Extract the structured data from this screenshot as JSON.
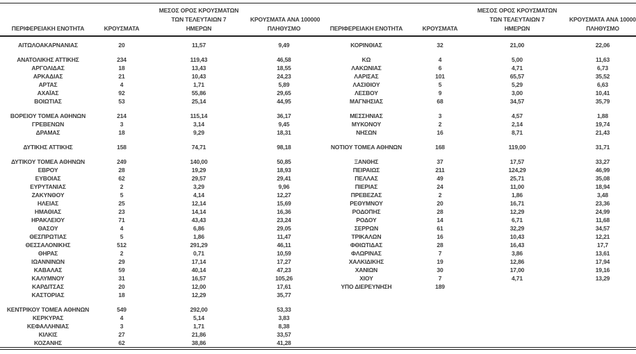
{
  "page": {
    "background": "#ffffff",
    "text_color": "#3b3b3b",
    "rule_color": "#1f1f1f"
  },
  "headers": {
    "region": "ΠΕΡΙΦΕΡΕΙΑΚΗ ΕΝΟΤΗΤΑ",
    "cases": "ΚΡΟΥΣΜΑΤΑ",
    "avg7_l1": "ΜΕΣΟΣ ΟΡΟΣ ΚΡΟΥΣΜΑΤΩΝ",
    "avg7_l2": "ΤΩΝ ΤΕΛΕΥΤΑΙΩΝ 7",
    "avg7_l3": "ΗΜΕΡΩΝ",
    "per100k_l1": "ΚΡΟΥΣΜΑΤΑ ΑΝΑ 100000",
    "per100k_l2": "ΠΛΗΘΥΣΜΟ"
  },
  "rows": [
    {
      "left": [
        "ΑΙΤΩΛΟΑΚΑΡΝΑΝΙΑΣ",
        "20",
        "11,57",
        "9,49"
      ],
      "right": [
        "ΚΟΡΙΝΘΙΑΣ",
        "32",
        "21,00",
        "22,06"
      ]
    },
    {
      "blank": true
    },
    {
      "left": [
        "ΑΝΑΤΟΛΙΚΗΣ ΑΤΤΙΚΗΣ",
        "234",
        "119,43",
        "46,58"
      ],
      "right": [
        "ΚΩ",
        "4",
        "5,00",
        "11,63"
      ]
    },
    {
      "left": [
        "ΑΡΓΟΛΙΔΑΣ",
        "18",
        "13,43",
        "18,55"
      ],
      "right": [
        "ΛΑΚΩΝΙΑΣ",
        "6",
        "4,71",
        "6,73"
      ]
    },
    {
      "left": [
        "ΑΡΚΑΔΙΑΣ",
        "21",
        "10,43",
        "24,23"
      ],
      "right": [
        "ΛΑΡΙΣΑΣ",
        "101",
        "65,57",
        "35,52"
      ]
    },
    {
      "left": [
        "ΑΡΤΑΣ",
        "4",
        "1,71",
        "5,89"
      ],
      "right": [
        "ΛΑΣΙΘΙΟΥ",
        "5",
        "5,29",
        "6,63"
      ]
    },
    {
      "left": [
        "ΑΧΑΪΑΣ",
        "92",
        "55,86",
        "29,65"
      ],
      "right": [
        "ΛΕΣΒΟΥ",
        "9",
        "3,00",
        "10,41"
      ]
    },
    {
      "left": [
        "ΒΟΙΩΤΙΑΣ",
        "53",
        "25,14",
        "44,95"
      ],
      "right": [
        "ΜΑΓΝΗΣΙΑΣ",
        "68",
        "34,57",
        "35,79"
      ]
    },
    {
      "blank": true
    },
    {
      "left": [
        "ΒΟΡΕΙΟΥ ΤΟΜΕΑ ΑΘΗΝΩΝ",
        "214",
        "115,14",
        "36,17"
      ],
      "right": [
        "ΜΕΣΣΗΝΙΑΣ",
        "3",
        "4,57",
        "1,88"
      ]
    },
    {
      "left": [
        "ΓΡΕΒΕΝΩΝ",
        "3",
        "3,14",
        "9,45"
      ],
      "right": [
        "ΜΥΚΟΝΟΥ",
        "2",
        "2,14",
        "19,74"
      ]
    },
    {
      "left": [
        "ΔΡΑΜΑΣ",
        "18",
        "9,29",
        "18,31"
      ],
      "right": [
        "ΝΗΣΩΝ",
        "16",
        "8,71",
        "21,43"
      ]
    },
    {
      "blank": true
    },
    {
      "left": [
        "ΔΥΤΙΚΗΣ ΑΤΤΙΚΗΣ",
        "158",
        "74,71",
        "98,18"
      ],
      "right": [
        "ΝΟΤΙΟΥ ΤΟΜΕΑ ΑΘΗΝΩΝ",
        "168",
        "119,00",
        "31,71"
      ]
    },
    {
      "blank": true
    },
    {
      "left": [
        "ΔΥΤΙΚΟΥ ΤΟΜΕΑ ΑΘΗΝΩΝ",
        "249",
        "140,00",
        "50,85"
      ],
      "right": [
        "ΞΑΝΘΗΣ",
        "37",
        "17,57",
        "33,27"
      ]
    },
    {
      "left": [
        "ΕΒΡΟΥ",
        "28",
        "19,29",
        "18,93"
      ],
      "right": [
        "ΠΕΙΡΑΙΩΣ",
        "211",
        "124,29",
        "46,99"
      ]
    },
    {
      "left": [
        "ΕΥΒΟΙΑΣ",
        "62",
        "29,57",
        "29,41"
      ],
      "right": [
        "ΠΕΛΛΑΣ",
        "49",
        "25,71",
        "35,08"
      ]
    },
    {
      "left": [
        "ΕΥΡΥΤΑΝΙΑΣ",
        "2",
        "3,29",
        "9,96"
      ],
      "right": [
        "ΠΙΕΡΙΑΣ",
        "24",
        "11,00",
        "18,94"
      ]
    },
    {
      "left": [
        "ΖΑΚΥΝΘΟΥ",
        "5",
        "4,14",
        "12,27"
      ],
      "right": [
        "ΠΡΕΒΕΖΑΣ",
        "2",
        "1,86",
        "3,48"
      ]
    },
    {
      "left": [
        "ΗΛΕΙΑΣ",
        "25",
        "12,14",
        "15,69"
      ],
      "right": [
        "ΡΕΘΥΜΝΟΥ",
        "20",
        "16,71",
        "23,36"
      ]
    },
    {
      "left": [
        "ΗΜΑΘΙΑΣ",
        "23",
        "14,14",
        "16,36"
      ],
      "right": [
        "ΡΟΔΟΠΗΣ",
        "28",
        "12,29",
        "24,99"
      ]
    },
    {
      "left": [
        "ΗΡΑΚΛΕΙΟΥ",
        "71",
        "43,43",
        "23,24"
      ],
      "right": [
        "ΡΟΔΟΥ",
        "14",
        "6,71",
        "11,68"
      ]
    },
    {
      "left": [
        "ΘΑΣΟΥ",
        "4",
        "6,86",
        "29,05"
      ],
      "right": [
        "ΣΕΡΡΩΝ",
        "61",
        "32,29",
        "34,57"
      ]
    },
    {
      "left": [
        "ΘΕΣΠΡΩΤΙΑΣ",
        "5",
        "1,86",
        "11,47"
      ],
      "right": [
        "ΤΡΙΚΑΛΩΝ",
        "16",
        "10,43",
        "12,21"
      ]
    },
    {
      "left": [
        "ΘΕΣΣΑΛΟΝΙΚΗΣ",
        "512",
        "291,29",
        "46,11"
      ],
      "right": [
        "ΦΘΙΩΤΙΔΑΣ",
        "28",
        "16,43",
        "17,7"
      ]
    },
    {
      "left": [
        "ΘΗΡΑΣ",
        "2",
        "0,71",
        "10,59"
      ],
      "right": [
        "ΦΛΩΡΙΝΑΣ",
        "7",
        "3,86",
        "13,61"
      ]
    },
    {
      "left": [
        "ΙΩΑΝΝΙΝΩΝ",
        "29",
        "17,14",
        "17,27"
      ],
      "right": [
        "ΧΑΛΚΙΔΙΚΗΣ",
        "19",
        "12,86",
        "17,94"
      ]
    },
    {
      "left": [
        "ΚΑΒΑΛΑΣ",
        "59",
        "40,14",
        "47,23"
      ],
      "right": [
        "ΧΑΝΙΩΝ",
        "30",
        "17,00",
        "19,16"
      ]
    },
    {
      "left": [
        "ΚΑΛΥΜΝΟΥ",
        "31",
        "16,57",
        "105,26"
      ],
      "right": [
        "ΧΙΟΥ",
        "7",
        "4,71",
        "13,29"
      ]
    },
    {
      "left": [
        "ΚΑΡΔΙΤΣΑΣ",
        "20",
        "12,00",
        "17,61"
      ],
      "right": [
        "ΥΠΟ ΔΙΕΡΕΥΝΗΣΗ",
        "189",
        "",
        ""
      ]
    },
    {
      "left": [
        "ΚΑΣΤΟΡΙΑΣ",
        "18",
        "12,29",
        "35,77"
      ],
      "right": [
        "",
        "",
        "",
        ""
      ]
    },
    {
      "blank": true
    },
    {
      "left": [
        "ΚΕΝΤΡΙΚΟΥ ΤΟΜΕΑ ΑΘΗΝΩΝ",
        "549",
        "292,00",
        "53,33"
      ],
      "right": [
        "",
        "",
        "",
        ""
      ]
    },
    {
      "left": [
        "ΚΕΡΚΥΡΑΣ",
        "4",
        "5,14",
        "3,83"
      ],
      "right": [
        "",
        "",
        "",
        ""
      ]
    },
    {
      "left": [
        "ΚΕΦΑΛΛΗΝΙΑΣ",
        "3",
        "1,71",
        "8,38"
      ],
      "right": [
        "",
        "",
        "",
        ""
      ]
    },
    {
      "left": [
        "ΚΙΛΚΙΣ",
        "27",
        "21,86",
        "33,57"
      ],
      "right": [
        "",
        "",
        "",
        ""
      ]
    },
    {
      "left": [
        "ΚΟΖΑΝΗΣ",
        "62",
        "38,86",
        "41,28"
      ],
      "right": [
        "",
        "",
        "",
        ""
      ]
    }
  ]
}
